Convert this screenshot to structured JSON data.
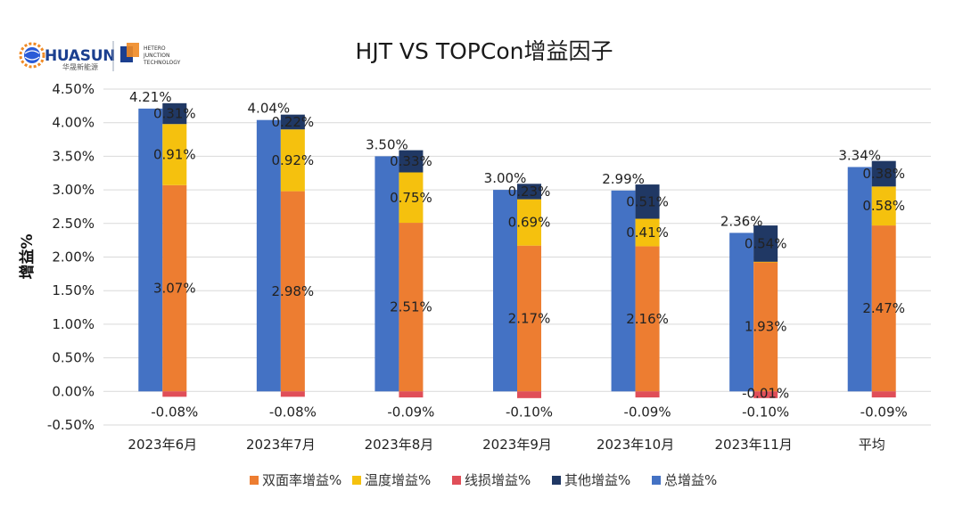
{
  "logo": {
    "brand": "HUASUN",
    "brand_cn": "华晟新能源",
    "tech_lines": [
      "HETERO",
      "JUNCTION",
      "TECHNOLOGY"
    ]
  },
  "chart_data": {
    "type": "bar",
    "title": "HJT VS TOPCon增益因子",
    "ylabel": "增益%",
    "xlabel": "",
    "ylim": [
      -0.5,
      4.5
    ],
    "ytick_step": 0.5,
    "ytick_labels": [
      "-0.50%",
      "0.00%",
      "0.50%",
      "1.00%",
      "1.50%",
      "2.00%",
      "2.50%",
      "3.00%",
      "3.50%",
      "4.00%",
      "4.50%"
    ],
    "categories": [
      "2023年6月",
      "2023年7月",
      "2023年8月",
      "2023年9月",
      "2023年10月",
      "2023年11月",
      "平均"
    ],
    "series": [
      {
        "name": "双面率增益%",
        "color": "#ED7D31",
        "values": [
          3.07,
          2.98,
          2.51,
          2.17,
          2.16,
          1.93,
          2.47
        ],
        "labels": [
          "3.07%",
          "2.98%",
          "2.51%",
          "2.17%",
          "2.16%",
          "1.93%",
          "2.47%"
        ]
      },
      {
        "name": "温度增益%",
        "color": "#F5C10E",
        "values": [
          0.91,
          0.92,
          0.75,
          0.69,
          0.41,
          -0.01,
          0.58
        ],
        "labels": [
          "0.91%",
          "0.92%",
          "0.75%",
          "0.69%",
          "0.41%",
          "-0.01%",
          "0.58%"
        ]
      },
      {
        "name": "线损增益%",
        "color": "#E04E58",
        "values": [
          -0.08,
          -0.08,
          -0.09,
          -0.1,
          -0.09,
          -0.1,
          -0.09
        ],
        "labels": [
          "-0.08%",
          "-0.08%",
          "-0.09%",
          "-0.10%",
          "-0.09%",
          "-0.10%",
          "-0.09%"
        ]
      },
      {
        "name": "其他增益%",
        "color": "#203864",
        "values": [
          0.31,
          0.22,
          0.33,
          0.23,
          0.51,
          0.54,
          0.38
        ],
        "labels": [
          "0.31%",
          "0.22%",
          "0.33%",
          "0.23%",
          "0.51%",
          "0.54%",
          "0.38%"
        ]
      },
      {
        "name": "总增益%",
        "color": "#4472C4",
        "values": [
          4.21,
          4.04,
          3.5,
          3.0,
          2.99,
          2.36,
          3.34
        ],
        "labels": [
          "4.21%",
          "4.04%",
          "3.50%",
          "3.00%",
          "2.99%",
          "2.36%",
          "3.34%"
        ]
      }
    ],
    "grid": true,
    "legend": "bottom"
  }
}
